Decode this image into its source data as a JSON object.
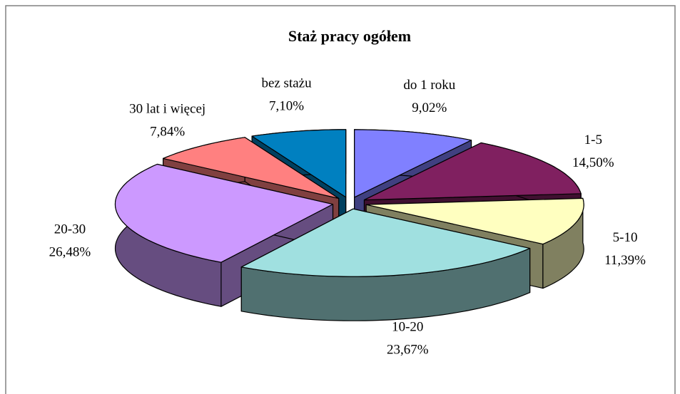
{
  "chart_data": {
    "type": "pie3d",
    "title": "Staż pracy ogółem",
    "categories": [
      "do 1 roku",
      "1-5",
      "5-10",
      "10-20",
      "20-30",
      "30 lat i więcej",
      "bez stażu"
    ],
    "values": [
      9.02,
      14.5,
      11.39,
      23.67,
      26.48,
      7.84,
      7.1
    ],
    "value_labels": [
      "9,02%",
      "14,50%",
      "11,39%",
      "23,67%",
      "26,48%",
      "7,84%",
      "7,10%"
    ],
    "colors": [
      "#8080ff",
      "#802060",
      "#ffffc0",
      "#a0e0e0",
      "#cc99ff",
      "#ff8080",
      "#0080c0"
    ]
  }
}
